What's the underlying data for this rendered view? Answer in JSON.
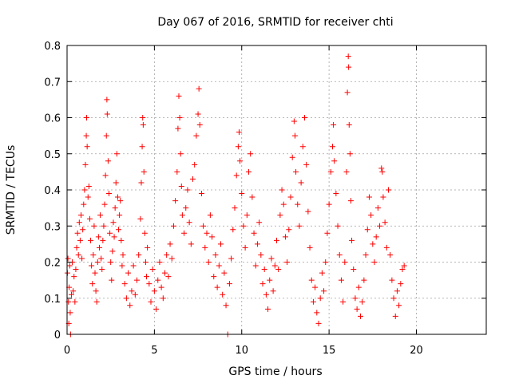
{
  "chart_data": {
    "type": "scatter",
    "title": "Day 067 of 2016, SRMTID for receiver chti",
    "xlabel": "GPS time / hours",
    "ylabel": "SRMTID / TECUs",
    "xlim": [
      0,
      24
    ],
    "ylim": [
      0,
      0.8
    ],
    "xticks": [
      0,
      5,
      10,
      15,
      20
    ],
    "yticks": [
      0,
      0.1,
      0.2,
      0.3,
      0.4,
      0.5,
      0.6,
      0.7,
      0.8
    ],
    "xtick_labels": [
      "0",
      "5",
      "10",
      "15",
      "20"
    ],
    "ytick_labels": [
      "0",
      "0.1",
      "0.2",
      "0.3",
      "0.4",
      "0.5",
      "0.6",
      "0.7",
      "0.8"
    ],
    "grid": true,
    "marker": "+",
    "color": "#ff0000",
    "series": [
      {
        "name": "SRMTID",
        "points": [
          [
            0.02,
            0.17
          ],
          [
            0.05,
            0.21
          ],
          [
            0.08,
            0.09
          ],
          [
            0.1,
            0.03
          ],
          [
            0.12,
            0.13
          ],
          [
            0.15,
            0.19
          ],
          [
            0.18,
            0.06
          ],
          [
            0.2,
            0.0
          ],
          [
            0.25,
            0.11
          ],
          [
            0.3,
            0.2
          ],
          [
            0.35,
            0.12
          ],
          [
            0.4,
            0.16
          ],
          [
            0.45,
            0.09
          ],
          [
            0.5,
            0.18
          ],
          [
            0.55,
            0.24
          ],
          [
            0.6,
            0.28
          ],
          [
            0.65,
            0.22
          ],
          [
            0.7,
            0.31
          ],
          [
            0.75,
            0.26
          ],
          [
            0.8,
            0.33
          ],
          [
            0.85,
            0.21
          ],
          [
            0.9,
            0.29
          ],
          [
            0.95,
            0.36
          ],
          [
            1.0,
            0.4
          ],
          [
            1.05,
            0.47
          ],
          [
            1.1,
            0.55
          ],
          [
            1.12,
            0.6
          ],
          [
            1.15,
            0.52
          ],
          [
            1.2,
            0.38
          ],
          [
            1.25,
            0.41
          ],
          [
            1.3,
            0.32
          ],
          [
            1.35,
            0.26
          ],
          [
            1.4,
            0.19
          ],
          [
            1.45,
            0.14
          ],
          [
            1.5,
            0.22
          ],
          [
            1.55,
            0.3
          ],
          [
            1.6,
            0.17
          ],
          [
            1.65,
            0.12
          ],
          [
            1.7,
            0.09
          ],
          [
            1.75,
            0.2
          ],
          [
            1.8,
            0.27
          ],
          [
            1.85,
            0.24
          ],
          [
            1.9,
            0.33
          ],
          [
            1.95,
            0.21
          ],
          [
            2.0,
            0.18
          ],
          [
            2.05,
            0.26
          ],
          [
            2.1,
            0.3
          ],
          [
            2.15,
            0.36
          ],
          [
            2.2,
            0.44
          ],
          [
            2.25,
            0.55
          ],
          [
            2.28,
            0.65
          ],
          [
            2.3,
            0.61
          ],
          [
            2.35,
            0.48
          ],
          [
            2.4,
            0.39
          ],
          [
            2.45,
            0.28
          ],
          [
            2.5,
            0.2
          ],
          [
            2.55,
            0.15
          ],
          [
            2.6,
            0.23
          ],
          [
            2.65,
            0.31
          ],
          [
            2.7,
            0.27
          ],
          [
            2.75,
            0.35
          ],
          [
            2.8,
            0.42
          ],
          [
            2.85,
            0.5
          ],
          [
            2.9,
            0.38
          ],
          [
            2.95,
            0.29
          ],
          [
            3.0,
            0.33
          ],
          [
            3.05,
            0.37
          ],
          [
            3.1,
            0.26
          ],
          [
            3.15,
            0.19
          ],
          [
            3.2,
            0.22
          ],
          [
            3.3,
            0.14
          ],
          [
            3.4,
            0.1
          ],
          [
            3.5,
            0.17
          ],
          [
            3.6,
            0.08
          ],
          [
            3.7,
            0.12
          ],
          [
            3.8,
            0.19
          ],
          [
            3.9,
            0.11
          ],
          [
            4.0,
            0.15
          ],
          [
            4.1,
            0.22
          ],
          [
            4.2,
            0.32
          ],
          [
            4.25,
            0.42
          ],
          [
            4.3,
            0.52
          ],
          [
            4.33,
            0.6
          ],
          [
            4.36,
            0.58
          ],
          [
            4.4,
            0.45
          ],
          [
            4.45,
            0.28
          ],
          [
            4.5,
            0.2
          ],
          [
            4.55,
            0.16
          ],
          [
            4.6,
            0.24
          ],
          [
            4.7,
            0.14
          ],
          [
            4.8,
            0.09
          ],
          [
            4.9,
            0.18
          ],
          [
            5.0,
            0.12
          ],
          [
            5.1,
            0.07
          ],
          [
            5.2,
            0.15
          ],
          [
            5.3,
            0.2
          ],
          [
            5.4,
            0.13
          ],
          [
            5.5,
            0.1
          ],
          [
            5.6,
            0.17
          ],
          [
            5.7,
            0.22
          ],
          [
            5.8,
            0.16
          ],
          [
            5.9,
            0.25
          ],
          [
            6.0,
            0.21
          ],
          [
            6.1,
            0.3
          ],
          [
            6.2,
            0.37
          ],
          [
            6.3,
            0.45
          ],
          [
            6.35,
            0.57
          ],
          [
            6.4,
            0.66
          ],
          [
            6.45,
            0.6
          ],
          [
            6.5,
            0.5
          ],
          [
            6.55,
            0.41
          ],
          [
            6.6,
            0.33
          ],
          [
            6.7,
            0.28
          ],
          [
            6.8,
            0.35
          ],
          [
            6.9,
            0.4
          ],
          [
            7.0,
            0.31
          ],
          [
            7.1,
            0.25
          ],
          [
            7.2,
            0.43
          ],
          [
            7.3,
            0.47
          ],
          [
            7.4,
            0.55
          ],
          [
            7.5,
            0.61
          ],
          [
            7.55,
            0.68
          ],
          [
            7.6,
            0.58
          ],
          [
            7.7,
            0.39
          ],
          [
            7.8,
            0.3
          ],
          [
            7.9,
            0.24
          ],
          [
            8.0,
            0.28
          ],
          [
            8.1,
            0.2
          ],
          [
            8.2,
            0.33
          ],
          [
            8.3,
            0.27
          ],
          [
            8.4,
            0.16
          ],
          [
            8.5,
            0.22
          ],
          [
            8.6,
            0.13
          ],
          [
            8.7,
            0.19
          ],
          [
            8.8,
            0.25
          ],
          [
            8.9,
            0.11
          ],
          [
            9.0,
            0.17
          ],
          [
            9.1,
            0.08
          ],
          [
            9.2,
            0.0
          ],
          [
            9.3,
            0.14
          ],
          [
            9.4,
            0.21
          ],
          [
            9.5,
            0.29
          ],
          [
            9.6,
            0.35
          ],
          [
            9.7,
            0.44
          ],
          [
            9.8,
            0.52
          ],
          [
            9.85,
            0.56
          ],
          [
            9.9,
            0.48
          ],
          [
            10.0,
            0.39
          ],
          [
            10.1,
            0.3
          ],
          [
            10.2,
            0.24
          ],
          [
            10.3,
            0.33
          ],
          [
            10.4,
            0.45
          ],
          [
            10.5,
            0.5
          ],
          [
            10.6,
            0.38
          ],
          [
            10.7,
            0.28
          ],
          [
            10.8,
            0.19
          ],
          [
            10.9,
            0.25
          ],
          [
            11.0,
            0.31
          ],
          [
            11.1,
            0.22
          ],
          [
            11.2,
            0.14
          ],
          [
            11.3,
            0.18
          ],
          [
            11.4,
            0.11
          ],
          [
            11.5,
            0.07
          ],
          [
            11.6,
            0.15
          ],
          [
            11.7,
            0.21
          ],
          [
            11.8,
            0.12
          ],
          [
            11.9,
            0.19
          ],
          [
            12.0,
            0.26
          ],
          [
            12.1,
            0.18
          ],
          [
            12.2,
            0.33
          ],
          [
            12.3,
            0.4
          ],
          [
            12.4,
            0.36
          ],
          [
            12.5,
            0.27
          ],
          [
            12.6,
            0.2
          ],
          [
            12.7,
            0.29
          ],
          [
            12.8,
            0.38
          ],
          [
            12.9,
            0.49
          ],
          [
            13.0,
            0.59
          ],
          [
            13.05,
            0.55
          ],
          [
            13.1,
            0.45
          ],
          [
            13.2,
            0.36
          ],
          [
            13.3,
            0.3
          ],
          [
            13.4,
            0.42
          ],
          [
            13.5,
            0.52
          ],
          [
            13.6,
            0.6
          ],
          [
            13.7,
            0.47
          ],
          [
            13.8,
            0.34
          ],
          [
            13.9,
            0.24
          ],
          [
            14.0,
            0.15
          ],
          [
            14.1,
            0.09
          ],
          [
            14.2,
            0.13
          ],
          [
            14.3,
            0.06
          ],
          [
            14.4,
            0.03
          ],
          [
            14.5,
            0.1
          ],
          [
            14.6,
            0.17
          ],
          [
            14.7,
            0.12
          ],
          [
            14.8,
            0.2
          ],
          [
            14.9,
            0.28
          ],
          [
            15.0,
            0.36
          ],
          [
            15.1,
            0.45
          ],
          [
            15.2,
            0.52
          ],
          [
            15.25,
            0.58
          ],
          [
            15.3,
            0.48
          ],
          [
            15.4,
            0.39
          ],
          [
            15.5,
            0.3
          ],
          [
            15.6,
            0.22
          ],
          [
            15.7,
            0.15
          ],
          [
            15.8,
            0.09
          ],
          [
            15.9,
            0.2
          ],
          [
            16.0,
            0.45
          ],
          [
            16.05,
            0.67
          ],
          [
            16.1,
            0.77
          ],
          [
            16.12,
            0.74
          ],
          [
            16.15,
            0.58
          ],
          [
            16.2,
            0.5
          ],
          [
            16.25,
            0.37
          ],
          [
            16.3,
            0.26
          ],
          [
            16.4,
            0.18
          ],
          [
            16.5,
            0.1
          ],
          [
            16.6,
            0.07
          ],
          [
            16.7,
            0.13
          ],
          [
            16.8,
            0.05
          ],
          [
            16.9,
            0.09
          ],
          [
            17.0,
            0.15
          ],
          [
            17.1,
            0.22
          ],
          [
            17.2,
            0.29
          ],
          [
            17.3,
            0.38
          ],
          [
            17.4,
            0.33
          ],
          [
            17.5,
            0.25
          ],
          [
            17.6,
            0.2
          ],
          [
            17.7,
            0.27
          ],
          [
            17.8,
            0.35
          ],
          [
            17.9,
            0.3
          ],
          [
            18.0,
            0.46
          ],
          [
            18.05,
            0.45
          ],
          [
            18.1,
            0.38
          ],
          [
            18.2,
            0.31
          ],
          [
            18.3,
            0.24
          ],
          [
            18.4,
            0.4
          ],
          [
            18.5,
            0.22
          ],
          [
            18.6,
            0.15
          ],
          [
            18.7,
            0.1
          ],
          [
            18.8,
            0.05
          ],
          [
            18.9,
            0.12
          ],
          [
            19.0,
            0.08
          ],
          [
            19.1,
            0.14
          ],
          [
            19.2,
            0.18
          ],
          [
            19.3,
            0.19
          ]
        ]
      }
    ]
  }
}
